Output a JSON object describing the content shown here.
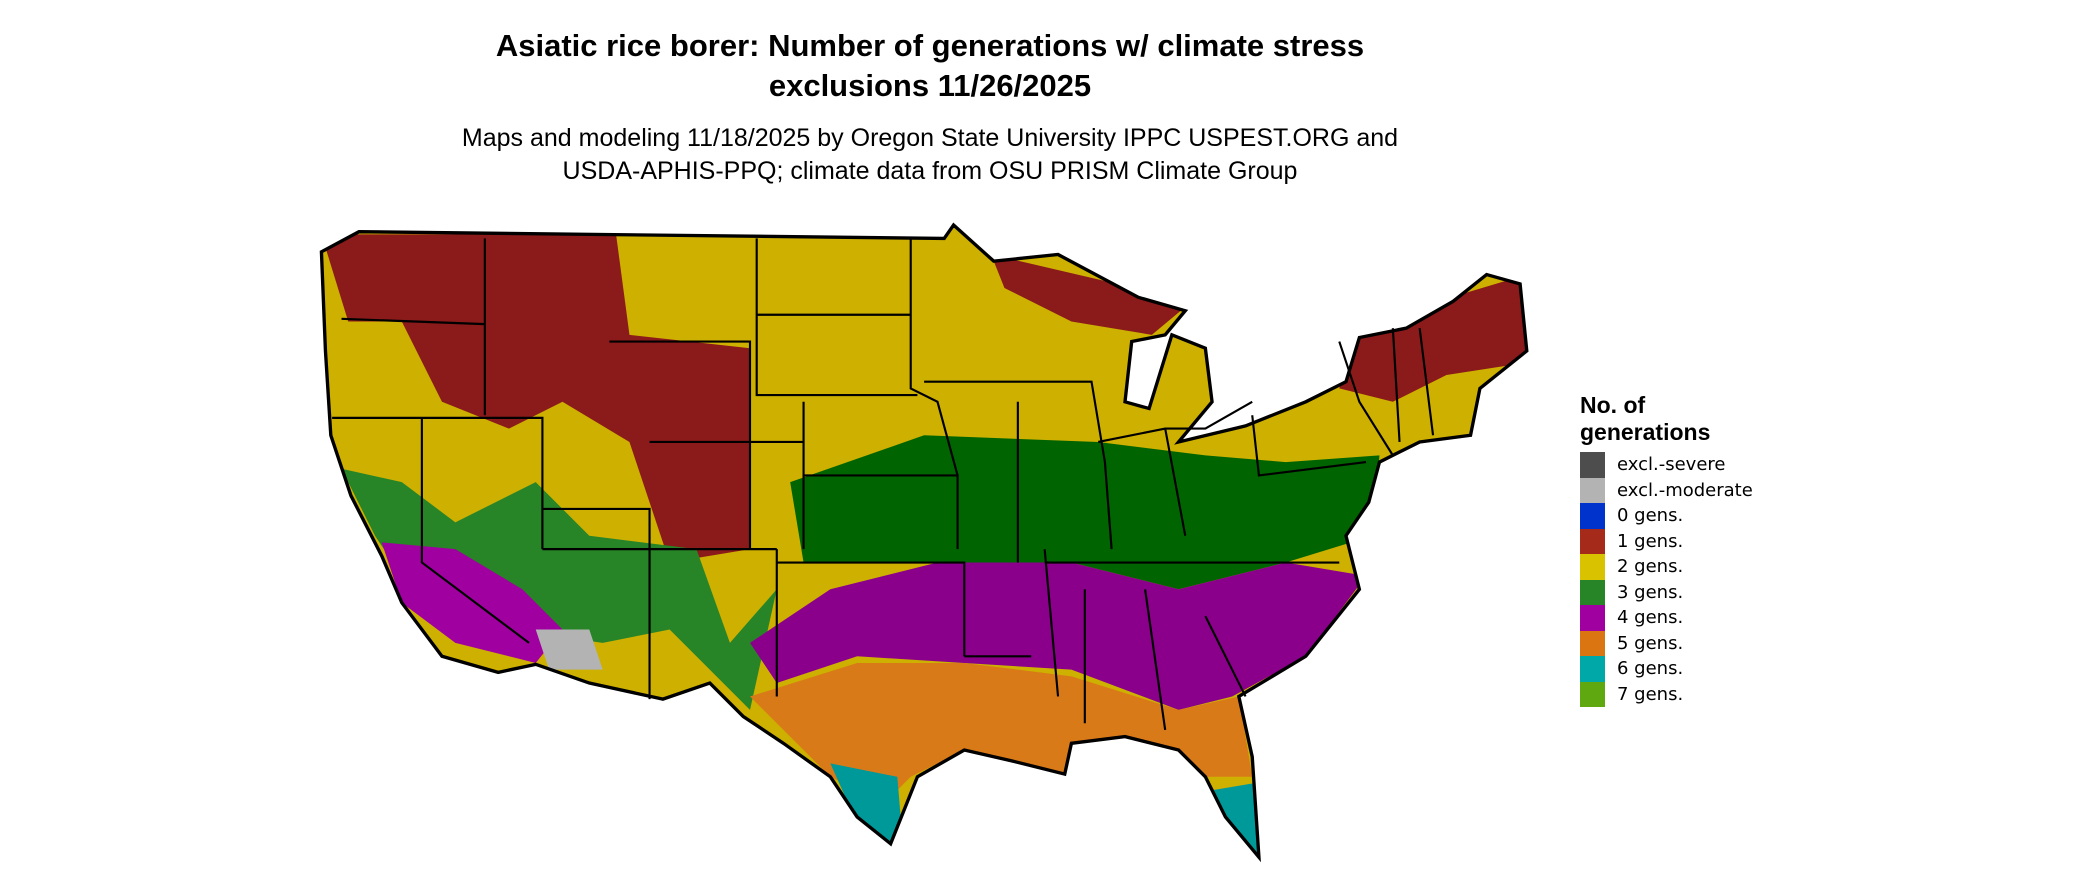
{
  "title": {
    "line1": "Asiatic rice borer: Number of generations w/ climate stress",
    "line2": "exclusions 11/26/2025"
  },
  "subtitle": {
    "line1": "Maps and modeling 11/18/2025 by Oregon State University IPPC USPEST.ORG and",
    "line2": "USDA-APHIS-PPQ; climate data from OSU PRISM Climate Group"
  },
  "legend": {
    "title_line1": "No. of",
    "title_line2": "generations",
    "items": [
      {
        "label": "excl.-severe",
        "color": "#4d4d4d"
      },
      {
        "label": "excl.-moderate",
        "color": "#b3b3b3"
      },
      {
        "label": "0 gens.",
        "color": "#0033cc"
      },
      {
        "label": "1 gens.",
        "color": "#a52a1a"
      },
      {
        "label": "2 gens.",
        "color": "#d9c200"
      },
      {
        "label": "3 gens.",
        "color": "#278427"
      },
      {
        "label": "4 gens.",
        "color": "#a000a0"
      },
      {
        "label": "5 gens.",
        "color": "#db7512"
      },
      {
        "label": "6 gens.",
        "color": "#00a8a8"
      },
      {
        "label": "7 gens.",
        "color": "#5fa80f"
      }
    ]
  },
  "map": {
    "region": "contiguous United States",
    "colors": {
      "one_gen": "#8b1a1a",
      "two_gen": "#cdb000",
      "three_gen": "#006400",
      "four_gen": "#8b008b",
      "five_gen": "#d97a18",
      "six_gen": "#009999",
      "border": "#000000"
    }
  }
}
